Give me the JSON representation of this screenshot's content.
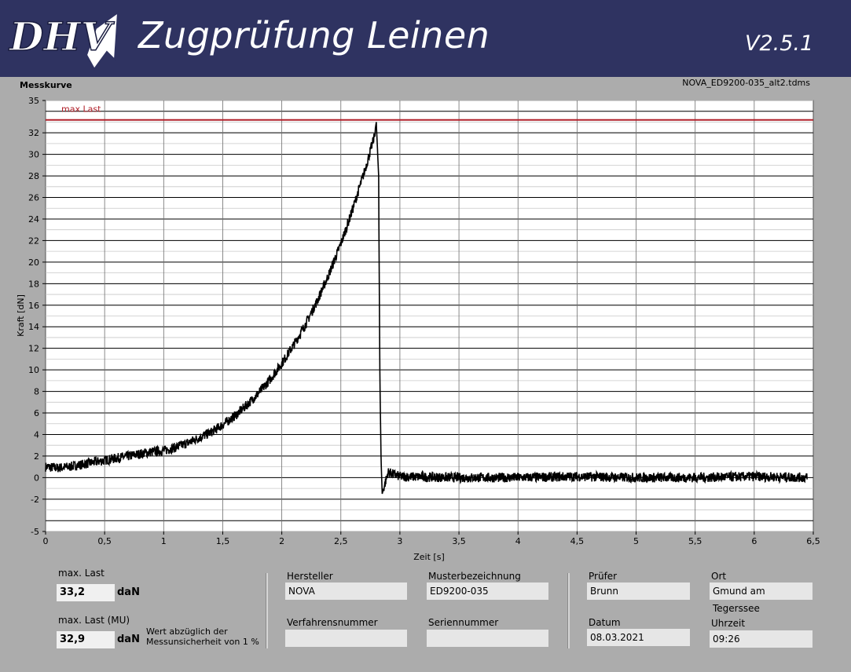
{
  "header": {
    "logo_text": "DHV",
    "title": "Zugprüfung Leinen",
    "version": "V2.5.1"
  },
  "graph": {
    "label": "Messkurve",
    "file_name": "NOVA_ED9200-035_alt2.tdms",
    "cursor_label": "max Last"
  },
  "chart_data": {
    "type": "line",
    "xlabel": "Zeit [s]",
    "ylabel": "Kraft [dN]",
    "xlim": [
      0,
      6.5
    ],
    "ylim": [
      -5,
      35
    ],
    "x_ticks": [
      "0",
      "0,5",
      "1",
      "1,5",
      "2",
      "2,5",
      "3",
      "3,5",
      "4",
      "4,5",
      "5",
      "5,5",
      "6",
      "6,5"
    ],
    "y_ticks": [
      "-5",
      "-2",
      "0",
      "2",
      "4",
      "6",
      "8",
      "10",
      "12",
      "14",
      "16",
      "18",
      "20",
      "22",
      "24",
      "26",
      "28",
      "30",
      "32",
      "35"
    ],
    "grid": true,
    "max_line": 33.2,
    "series": [
      {
        "color": "#000000",
        "x": [
          0,
          0.1,
          0.2,
          0.3,
          0.4,
          0.5,
          0.6,
          0.7,
          0.8,
          0.9,
          1.0,
          1.1,
          1.2,
          1.3,
          1.4,
          1.5,
          1.6,
          1.7,
          1.8,
          1.9,
          2.0,
          2.1,
          2.2,
          2.3,
          2.4,
          2.5,
          2.6,
          2.7,
          2.78,
          2.8,
          2.82,
          2.83,
          2.84,
          2.85,
          2.9,
          3.0,
          3.5,
          4.0,
          4.5,
          5.0,
          5.5,
          6.0,
          6.45
        ],
        "y": [
          1.0,
          0.9,
          1.0,
          1.2,
          1.4,
          1.6,
          1.8,
          2.0,
          2.2,
          2.4,
          2.5,
          2.8,
          3.2,
          3.7,
          4.2,
          4.9,
          5.7,
          6.7,
          7.8,
          9.1,
          10.6,
          12.3,
          14.2,
          16.4,
          18.9,
          21.7,
          24.9,
          28.4,
          31.5,
          33.0,
          28.0,
          10.0,
          2.0,
          -1.5,
          0.5,
          0.1,
          0.0,
          0.0,
          0.1,
          0.0,
          0.0,
          0.1,
          0.0
        ]
      }
    ]
  },
  "results": {
    "max_load_label": "max. Last",
    "max_load_value": "33,2",
    "max_load_unit": "daN",
    "max_load_mu_label": "max. Last (MU)",
    "max_load_mu_value": "32,9",
    "max_load_mu_unit": "daN",
    "mu_note": "Wert abzüglich der Messunsicherheit von 1 %"
  },
  "info": {
    "manufacturer_label": "Hersteller",
    "manufacturer": "NOVA",
    "model_label": "Musterbezeichnung",
    "model": "ED9200-035",
    "procedure_label": "Verfahrensnummer",
    "procedure": "",
    "serial_label": "Seriennummer",
    "serial": "",
    "tester_label": "Prüfer",
    "tester": "Brunn",
    "location_label": "Ort",
    "location": "Gmund am Tegerssee",
    "date_label": "Datum",
    "date": "08.03.2021",
    "time_label": "Uhrzeit",
    "time": "09:26"
  }
}
